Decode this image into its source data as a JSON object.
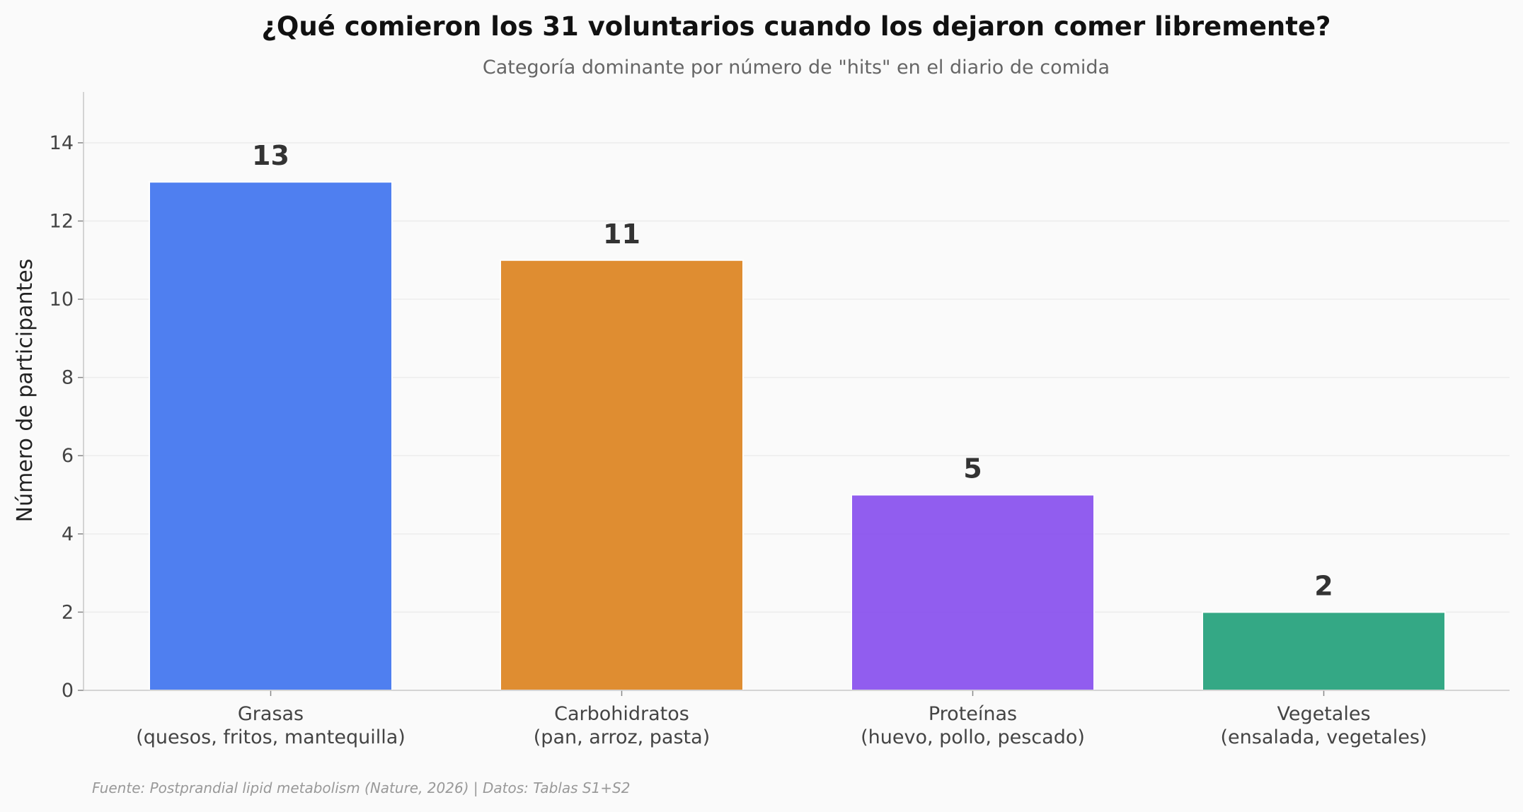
{
  "chart_data": {
    "type": "bar",
    "title": "¿Qué comieron los 31 voluntarios cuando los dejaron comer libremente?",
    "subtitle": "Categoría dominante por número de \"hits\" en el diario de comida",
    "xlabel": "",
    "ylabel": "Número de participantes",
    "ylim": [
      0,
      15.3
    ],
    "yticks": [
      0,
      2,
      4,
      6,
      8,
      10,
      12,
      14
    ],
    "grid": true,
    "categories": [
      [
        "Grasas",
        "(quesos, fritos, mantequilla)"
      ],
      [
        "Carbohidratos",
        "(pan, arroz, pasta)"
      ],
      [
        "Proteínas",
        "(huevo, pollo, pescado)"
      ],
      [
        "Vegetales",
        "(ensalada, vegetales)"
      ]
    ],
    "values": [
      13,
      11,
      5,
      2
    ],
    "value_labels": [
      "13",
      "11",
      "5",
      "2"
    ],
    "colors": [
      "#4a7cf0",
      "#df8a2b",
      "#8e58ef",
      "#2ea682"
    ],
    "source": "Fuente: Postprandial lipid metabolism (Nature, 2026) | Datos: Tablas S1+S2"
  }
}
